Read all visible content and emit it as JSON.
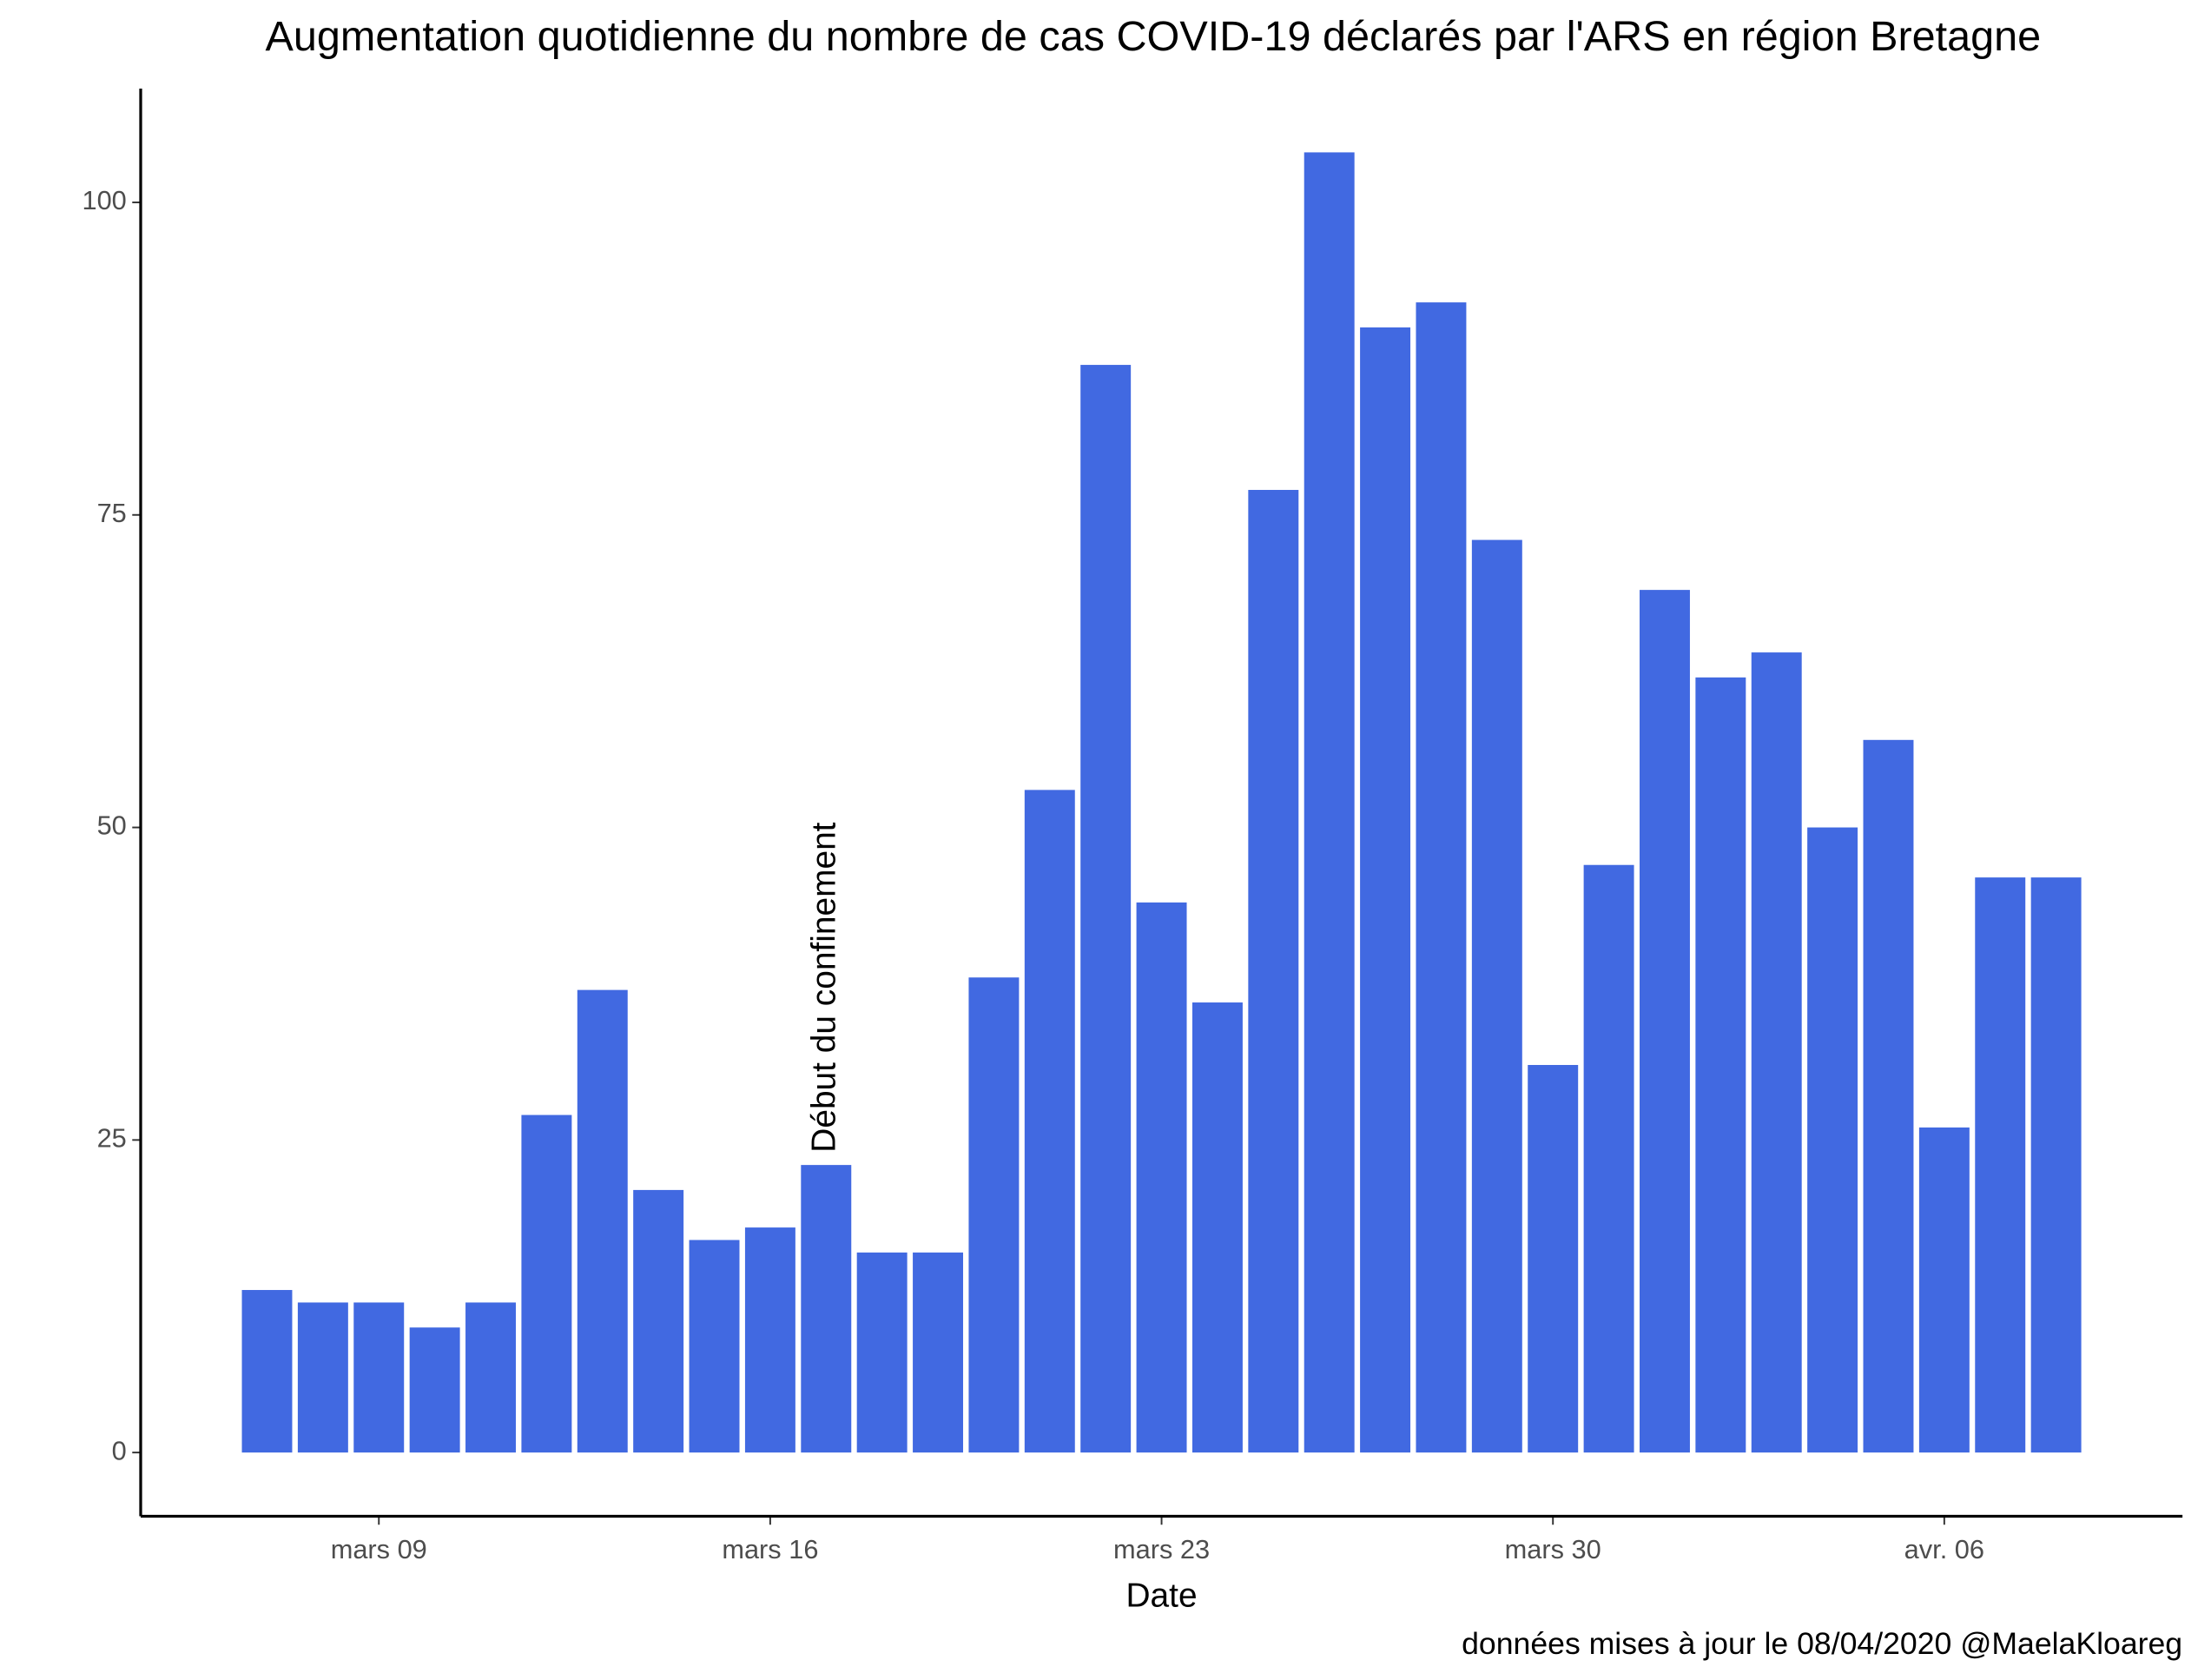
{
  "chart_data": {
    "type": "bar",
    "title": "Augmentation quotidienne du nombre de cas COVID-19 déclarés par l'ARS en région Bretagne",
    "xlabel": "Date",
    "caption": "données mises à jour le 08/04/2020 @MaelaKloareg",
    "color": "#4169e1",
    "x": [
      "03-07",
      "03-08",
      "03-09",
      "03-10",
      "03-11",
      "03-12",
      "03-13",
      "03-14",
      "03-15",
      "03-16",
      "03-17",
      "03-18",
      "03-19",
      "03-20",
      "03-21",
      "03-22",
      "03-23",
      "03-24",
      "03-25",
      "03-26",
      "03-27",
      "03-28",
      "03-29",
      "03-30",
      "03-31",
      "04-01",
      "04-02",
      "04-03",
      "04-04",
      "04-05",
      "04-06",
      "04-07",
      "04-08"
    ],
    "values": [
      13,
      12,
      12,
      10,
      12,
      27,
      37,
      21,
      17,
      18,
      23,
      16,
      16,
      38,
      53,
      87,
      44,
      36,
      77,
      104,
      90,
      92,
      73,
      31,
      47,
      69,
      62,
      64,
      50,
      57,
      26,
      46,
      46
    ],
    "xticks": [
      {
        "value": "03-09",
        "label": "mars 09"
      },
      {
        "value": "03-16",
        "label": "mars 16"
      },
      {
        "value": "03-23",
        "label": "mars 23"
      },
      {
        "value": "03-30",
        "label": "mars 30"
      },
      {
        "value": "04-06",
        "label": "avr. 06"
      }
    ],
    "ylim": [
      -5.1,
      109.1
    ],
    "yticks": [
      0,
      25,
      50,
      75,
      100
    ],
    "grid": false,
    "annotation": {
      "text": "Début du confinement",
      "x": "03-17",
      "y": 24
    }
  }
}
